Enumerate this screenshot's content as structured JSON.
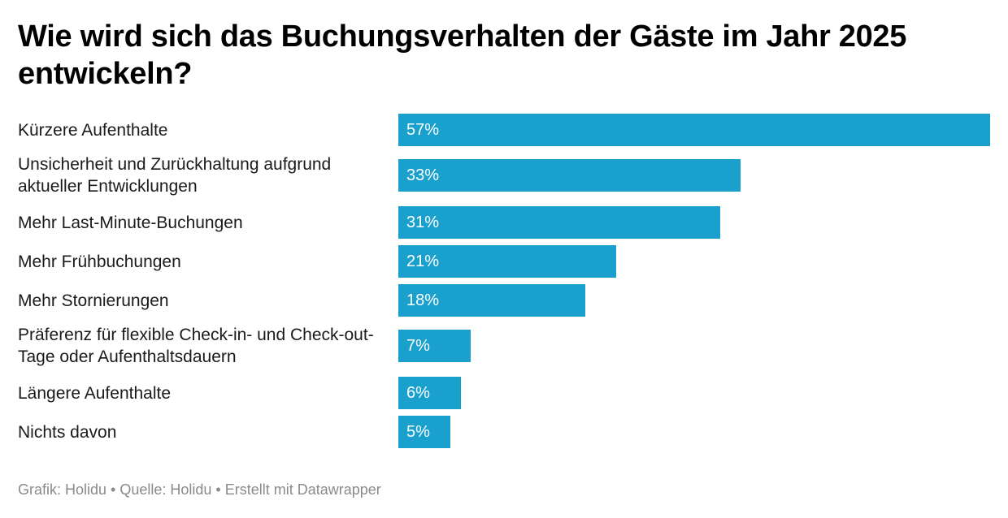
{
  "chart_data": {
    "type": "bar",
    "orientation": "horizontal",
    "title": "Wie wird sich das Buchungsverhalten der Gäste im Jahr 2025 entwickeln?",
    "categories": [
      "Kürzere Aufenthalte",
      "Unsicherheit und Zurückhaltung aufgrund aktueller Entwicklungen",
      "Mehr Last-Minute-Buchungen",
      "Mehr Frühbuchungen",
      "Mehr Stornierungen",
      "Präferenz für flexible Check-in- und Check-out-Tage oder Aufenthaltsdauern",
      "Längere Aufenthalte",
      "Nichts davon"
    ],
    "values": [
      57,
      33,
      31,
      21,
      18,
      7,
      6,
      5
    ],
    "value_labels": [
      "57%",
      "33%",
      "31%",
      "21%",
      "18%",
      "7%",
      "6%",
      "5%"
    ],
    "unit": "%",
    "xlim": [
      0,
      57
    ],
    "grid": false,
    "bar_color": "#1aa0cc",
    "xlabel": "",
    "ylabel": ""
  },
  "footer": "Grafik: Holidu • Quelle: Holidu • Erstellt mit Datawrapper"
}
